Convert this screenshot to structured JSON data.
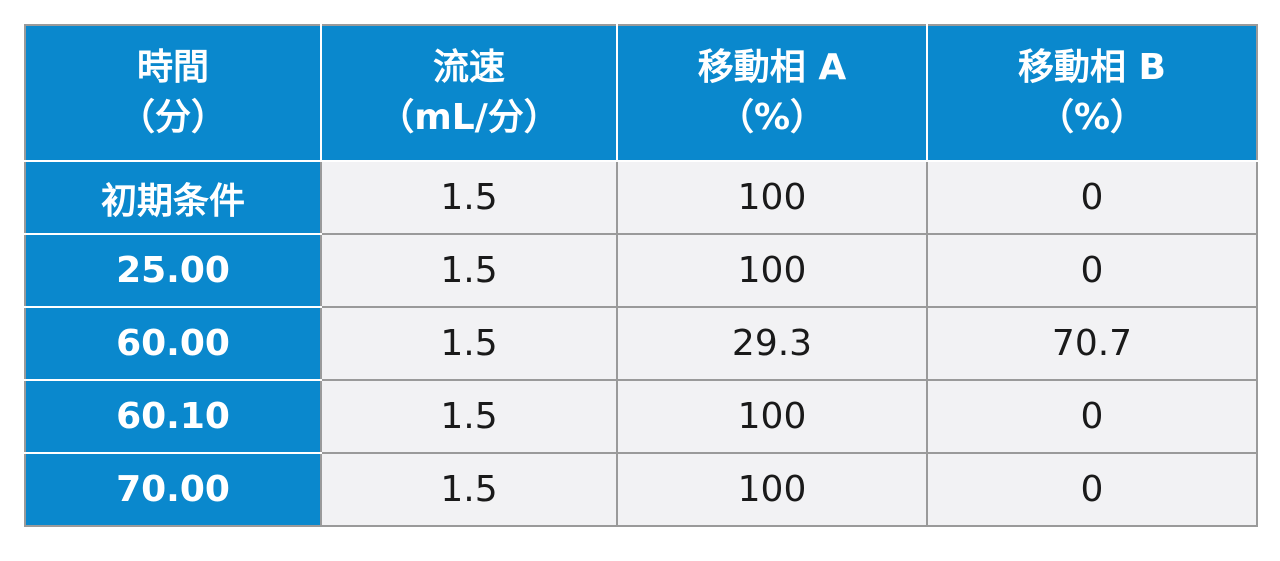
{
  "table": {
    "headers": [
      {
        "line1": "時間",
        "line2": "（分）"
      },
      {
        "line1": "流速",
        "line2": "（mL/分）"
      },
      {
        "line1": "移動相 A",
        "line2": "（%）"
      },
      {
        "line1": "移動相 B",
        "line2": "（%）"
      }
    ],
    "rows": [
      {
        "time": "初期条件",
        "flow": "1.5",
        "a": "100",
        "b": "0"
      },
      {
        "time": "25.00",
        "flow": "1.5",
        "a": "100",
        "b": "0"
      },
      {
        "time": "60.00",
        "flow": "1.5",
        "a": "29.3",
        "b": "70.7"
      },
      {
        "time": "60.10",
        "flow": "1.5",
        "a": "100",
        "b": "0"
      },
      {
        "time": "70.00",
        "flow": "1.5",
        "a": "100",
        "b": "0"
      }
    ]
  },
  "colors": {
    "header_bg": "#0a88cd",
    "cell_bg": "#f2f2f4",
    "border": "#9a9a9a"
  }
}
